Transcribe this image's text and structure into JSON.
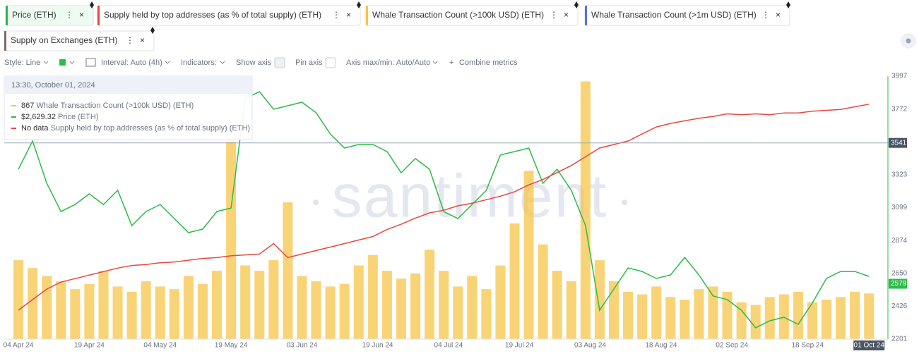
{
  "chart_data": {
    "type": "line",
    "x": [
      "2024-04-04",
      "2024-04-07",
      "2024-04-10",
      "2024-04-13",
      "2024-04-16",
      "2024-04-19",
      "2024-04-22",
      "2024-04-25",
      "2024-04-28",
      "2024-05-01",
      "2024-05-04",
      "2024-05-07",
      "2024-05-10",
      "2024-05-13",
      "2024-05-16",
      "2024-05-19",
      "2024-05-22",
      "2024-05-25",
      "2024-05-28",
      "2024-05-31",
      "2024-06-03",
      "2024-06-06",
      "2024-06-09",
      "2024-06-12",
      "2024-06-15",
      "2024-06-18",
      "2024-06-21",
      "2024-06-24",
      "2024-06-27",
      "2024-06-30",
      "2024-07-03",
      "2024-07-06",
      "2024-07-09",
      "2024-07-12",
      "2024-07-15",
      "2024-07-18",
      "2024-07-21",
      "2024-07-24",
      "2024-07-27",
      "2024-07-30",
      "2024-08-02",
      "2024-08-05",
      "2024-08-08",
      "2024-08-11",
      "2024-08-14",
      "2024-08-17",
      "2024-08-20",
      "2024-08-23",
      "2024-08-26",
      "2024-08-29",
      "2024-09-01",
      "2024-09-04",
      "2024-09-07",
      "2024-09-10",
      "2024-09-13",
      "2024-09-16",
      "2024-09-19",
      "2024-09-22",
      "2024-09-25",
      "2024-09-28",
      "2024-10-01"
    ],
    "xlim": [
      "2024-04-01",
      "2024-10-05"
    ],
    "xticks": [
      {
        "value": "2024-04-04",
        "label": "04 Apr 24"
      },
      {
        "value": "2024-04-19",
        "label": "19 Apr 24"
      },
      {
        "value": "2024-05-04",
        "label": "04 May 24"
      },
      {
        "value": "2024-05-19",
        "label": "19 May 24"
      },
      {
        "value": "2024-06-03",
        "label": "03 Jun 24"
      },
      {
        "value": "2024-06-19",
        "label": "19 Jun 24"
      },
      {
        "value": "2024-07-04",
        "label": "04 Jul 24"
      },
      {
        "value": "2024-07-19",
        "label": "19 Jul 24"
      },
      {
        "value": "2024-08-03",
        "label": "03 Aug 24"
      },
      {
        "value": "2024-08-18",
        "label": "18 Aug 24"
      },
      {
        "value": "2024-09-02",
        "label": "02 Sep 24"
      },
      {
        "value": "2024-09-18",
        "label": "18 Sep 24"
      },
      {
        "value": "2024-10-01",
        "label": "01 Oct 24"
      }
    ],
    "ylim": [
      2201,
      3997
    ],
    "yticks": [
      2201,
      2426,
      2650,
      2874,
      3099,
      3323,
      3772,
      3997
    ],
    "y2lim": [
      0,
      5000
    ],
    "y3lim": [
      74,
      77
    ],
    "crosshair_value": 3541,
    "last_value_label": 2579,
    "watermark": "santiment",
    "series": [
      {
        "name": "Price (ETH)",
        "type": "line",
        "color": "#2dbb4a",
        "values": [
          3361,
          3554,
          3265,
          3072,
          3120,
          3193,
          3120,
          3217,
          2976,
          3072,
          3120,
          3024,
          2928,
          2952,
          3072,
          3096,
          3843,
          3891,
          3771,
          3795,
          3819,
          3747,
          3602,
          3506,
          3530,
          3530,
          3482,
          3337,
          3434,
          3361,
          3072,
          3024,
          3120,
          3217,
          3458,
          3482,
          3506,
          3265,
          3361,
          3217,
          2976,
          2398,
          2543,
          2687,
          2663,
          2615,
          2639,
          2759,
          2639,
          2495,
          2471,
          2398,
          2278,
          2326,
          2350,
          2302,
          2447,
          2615,
          2663,
          2663,
          2629.32
        ]
      },
      {
        "name": "Supply held by top addresses (as % of total supply) (ETH)",
        "type": "line",
        "axis": "y3",
        "color": "#e8483f",
        "values": [
          74.33,
          74.45,
          74.57,
          74.65,
          74.69,
          74.73,
          74.77,
          74.81,
          74.84,
          74.85,
          74.87,
          74.88,
          74.9,
          74.92,
          74.93,
          74.95,
          74.96,
          74.97,
          75.09,
          74.93,
          74.97,
          75.01,
          75.05,
          75.09,
          75.13,
          75.17,
          75.25,
          75.31,
          75.38,
          75.44,
          75.47,
          75.52,
          75.55,
          75.59,
          75.63,
          75.68,
          75.76,
          75.82,
          75.9,
          75.98,
          76.08,
          76.18,
          76.22,
          76.26,
          76.34,
          76.42,
          76.46,
          76.49,
          76.52,
          76.54,
          76.57,
          76.56,
          76.57,
          76.56,
          76.58,
          76.58,
          76.6,
          76.61,
          76.62,
          76.65,
          76.68
        ]
      },
      {
        "name": "Whale Transaction Count (>100k USD) (ETH)",
        "type": "bar",
        "axis": "y2",
        "color": "#f7c548",
        "values": [
          1500,
          1350,
          1200,
          1100,
          950,
          1050,
          1300,
          1000,
          900,
          1100,
          1000,
          950,
          1200,
          1050,
          1300,
          3750,
          1400,
          1300,
          1500,
          2600,
          1200,
          1100,
          1000,
          1050,
          1400,
          1600,
          1300,
          1150,
          1250,
          1700,
          1300,
          1000,
          1200,
          950,
          1400,
          2200,
          3200,
          1800,
          1300,
          1100,
          4900,
          1500,
          1100,
          900,
          850,
          1000,
          800,
          750,
          950,
          1000,
          900,
          700,
          650,
          800,
          850,
          900,
          700,
          750,
          800,
          900,
          867
        ]
      }
    ],
    "other_metrics": [
      {
        "name": "Whale Transaction Count (>1m USD) (ETH)",
        "color": "#5a6fe0"
      },
      {
        "name": "Supply on Exchanges (ETH)",
        "color": "#7d6e6e"
      }
    ]
  },
  "toolbar": {
    "style": "Style: Line",
    "interval": "Interval: Auto (4h)",
    "indicators": "Indicators:",
    "show_axis": "Show axis",
    "pin_axis": "Pin axis",
    "axis_minmax": "Axis max/min: Auto/Auto",
    "combine": "Combine metrics"
  },
  "tooltip": {
    "time": "13:30, October 01, 2024",
    "price_text": "$2,629.32",
    "no_data": "No data"
  }
}
